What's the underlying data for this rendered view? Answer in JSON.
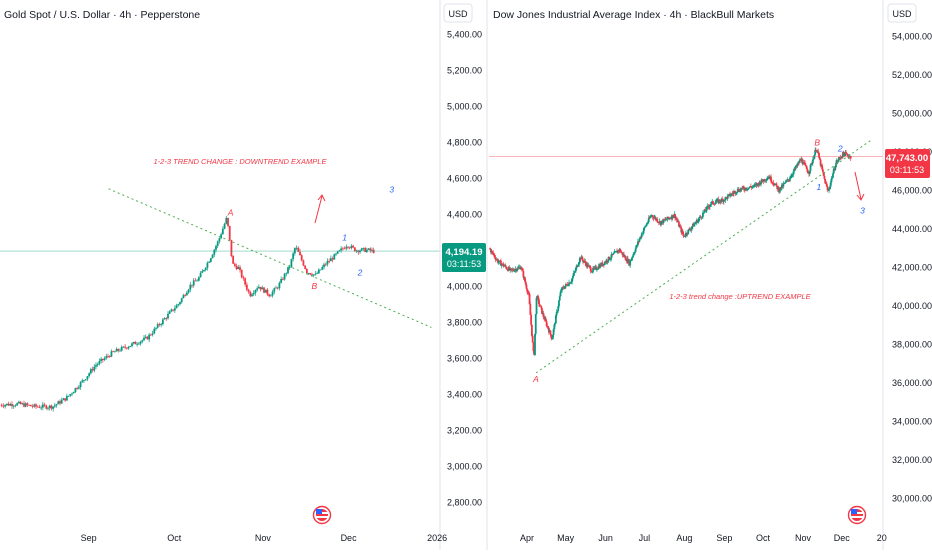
{
  "charts": [
    {
      "id": "gold",
      "title": "Gold Spot / U.S. Dollar · 4h · Pepperstone",
      "currency": "USD",
      "price_label": "4,194.19",
      "countdown": "03:11:53",
      "price_label_color": "#089981",
      "annotation": "1-2-3 TREND CHANGE : DOWNTREND EXAMPLE",
      "wave_labels": {
        "A": "A",
        "B": "B",
        "one": "1",
        "two": "2",
        "three": "3"
      },
      "y_ticks": [
        "5,400.00",
        "5,200.00",
        "5,000.00",
        "4,800.00",
        "4,600.00",
        "4,400.00",
        "4,200.00",
        "4,000.00",
        "3,800.00",
        "3,600.00",
        "3,400.00",
        "3,200.00",
        "3,000.00",
        "2,800.00"
      ],
      "x_ticks": [
        "Sep",
        "Oct",
        "Nov",
        "Dec",
        "2026"
      ]
    },
    {
      "id": "dow",
      "title": "Dow Jones Industrial Average Index · 4h · BlackBull Markets",
      "currency": "USD",
      "price_label": "47,743.00",
      "countdown": "03:11:53",
      "price_label_color": "#f23645",
      "annotation": "1-2-3 trend change :UPTREND EXAMPLE",
      "wave_labels": {
        "A": "A",
        "B": "B",
        "one": "1",
        "two": "2",
        "three": "3"
      },
      "y_ticks": [
        "54,000.00",
        "52,000.00",
        "50,000.00",
        "48,000.00",
        "46,000.00",
        "44,000.00",
        "42,000.00",
        "40,000.00",
        "38,000.00",
        "36,000.00",
        "34,000.00",
        "32,000.00",
        "30,000.00"
      ],
      "x_ticks": [
        "Apr",
        "May",
        "Jun",
        "Jul",
        "Aug",
        "Sep",
        "Oct",
        "Nov",
        "Dec",
        "20"
      ]
    }
  ],
  "chart_data": [
    {
      "type": "candlestick",
      "title": "Gold Spot / U.S. Dollar · 4h · Pepperstone",
      "unit": "USD",
      "ylim": [
        2700,
        5500
      ],
      "x_range": [
        "2025-08-01",
        "2026-01-02"
      ],
      "current_price": 4194.19,
      "price_path": [
        [
          "2025-08-01",
          3340
        ],
        [
          "2025-08-08",
          3345
        ],
        [
          "2025-08-14",
          3330
        ],
        [
          "2025-08-20",
          3330
        ],
        [
          "2025-08-25",
          3380
        ],
        [
          "2025-08-31",
          3480
        ],
        [
          "2025-09-04",
          3560
        ],
        [
          "2025-09-10",
          3630
        ],
        [
          "2025-09-16",
          3670
        ],
        [
          "2025-09-22",
          3710
        ],
        [
          "2025-09-26",
          3780
        ],
        [
          "2025-09-30",
          3850
        ],
        [
          "2025-10-03",
          3900
        ],
        [
          "2025-10-07",
          4000
        ],
        [
          "2025-10-10",
          4040
        ],
        [
          "2025-10-14",
          4150
        ],
        [
          "2025-10-17",
          4250
        ],
        [
          "2025-10-20",
          4380
        ],
        [
          "2025-10-22",
          4120
        ],
        [
          "2025-10-24",
          4100
        ],
        [
          "2025-10-28",
          3950
        ],
        [
          "2025-10-31",
          4000
        ],
        [
          "2025-11-04",
          3950
        ],
        [
          "2025-11-07",
          4000
        ],
        [
          "2025-11-11",
          4110
        ],
        [
          "2025-11-13",
          4220
        ],
        [
          "2025-11-17",
          4080
        ],
        [
          "2025-11-20",
          4060
        ],
        [
          "2025-11-24",
          4130
        ],
        [
          "2025-11-27",
          4170
        ],
        [
          "2025-12-01",
          4230
        ],
        [
          "2025-12-04",
          4200
        ],
        [
          "2025-12-08",
          4200
        ],
        [
          "2025-12-10",
          4194
        ]
      ],
      "trendline": {
        "from": [
          "2025-09-08",
          4540
        ],
        "to": [
          "2025-12-30",
          3770
        ]
      },
      "wave_points": {
        "A": [
          "2025-10-20",
          4380
        ],
        "B": [
          "2025-11-19",
          4050
        ],
        "1": [
          "2025-12-01",
          4230
        ],
        "2": [
          "2025-12-05",
          4130
        ],
        "3": [
          "2025-12-14",
          4520
        ]
      },
      "y_ticks": [
        5400,
        5200,
        5000,
        4800,
        4600,
        4400,
        4200,
        4000,
        3800,
        3600,
        3400,
        3200,
        3000,
        2800
      ],
      "x_ticks": [
        "Sep",
        "Oct",
        "Nov",
        "Dec",
        "2026"
      ]
    },
    {
      "type": "candlestick",
      "title": "Dow Jones Industrial Average Index · 4h · BlackBull Markets",
      "unit": "USD",
      "ylim": [
        29200,
        55200
      ],
      "x_range": [
        "2025-03-01",
        "2026-01-02"
      ],
      "current_price": 47743.0,
      "price_path": [
        [
          "2025-03-01",
          43200
        ],
        [
          "2025-03-10",
          42300
        ],
        [
          "2025-03-20",
          41800
        ],
        [
          "2025-03-28",
          42000
        ],
        [
          "2025-04-03",
          40500
        ],
        [
          "2025-04-07",
          37200
        ],
        [
          "2025-04-09",
          40500
        ],
        [
          "2025-04-14",
          39500
        ],
        [
          "2025-04-21",
          38300
        ],
        [
          "2025-04-28",
          40800
        ],
        [
          "2025-05-06",
          41300
        ],
        [
          "2025-05-13",
          42500
        ],
        [
          "2025-05-22",
          41800
        ],
        [
          "2025-05-31",
          42200
        ],
        [
          "2025-06-12",
          42900
        ],
        [
          "2025-06-20",
          42200
        ],
        [
          "2025-06-30",
          43800
        ],
        [
          "2025-07-07",
          44700
        ],
        [
          "2025-07-14",
          44300
        ],
        [
          "2025-07-25",
          44700
        ],
        [
          "2025-08-01",
          43600
        ],
        [
          "2025-08-13",
          44500
        ],
        [
          "2025-08-22",
          45300
        ],
        [
          "2025-09-01",
          45500
        ],
        [
          "2025-09-12",
          46000
        ],
        [
          "2025-09-25",
          46200
        ],
        [
          "2025-10-06",
          46700
        ],
        [
          "2025-10-14",
          46000
        ],
        [
          "2025-10-22",
          46600
        ],
        [
          "2025-10-31",
          47600
        ],
        [
          "2025-11-06",
          46900
        ],
        [
          "2025-11-12",
          48200
        ],
        [
          "2025-11-18",
          46600
        ],
        [
          "2025-11-21",
          45900
        ],
        [
          "2025-11-27",
          47400
        ],
        [
          "2025-12-03",
          47900
        ],
        [
          "2025-12-08",
          47743
        ]
      ],
      "trendline": {
        "from": [
          "2025-04-08",
          36500
        ],
        "to": [
          "2025-12-24",
          48600
        ]
      },
      "hline": 47743,
      "wave_points": {
        "A": [
          "2025-04-08",
          36500
        ],
        "B": [
          "2025-11-12",
          48200
        ],
        "1": [
          "2025-11-21",
          45900
        ],
        "2": [
          "2025-12-03",
          47900
        ],
        "3": [
          "2025-12-14",
          45600
        ]
      },
      "y_ticks": [
        54000,
        52000,
        50000,
        48000,
        46000,
        44000,
        42000,
        40000,
        38000,
        36000,
        34000,
        32000,
        30000
      ],
      "x_ticks": [
        "Apr",
        "May",
        "Jun",
        "Jul",
        "Aug",
        "Sep",
        "Oct",
        "Nov",
        "Dec",
        "20"
      ]
    }
  ]
}
